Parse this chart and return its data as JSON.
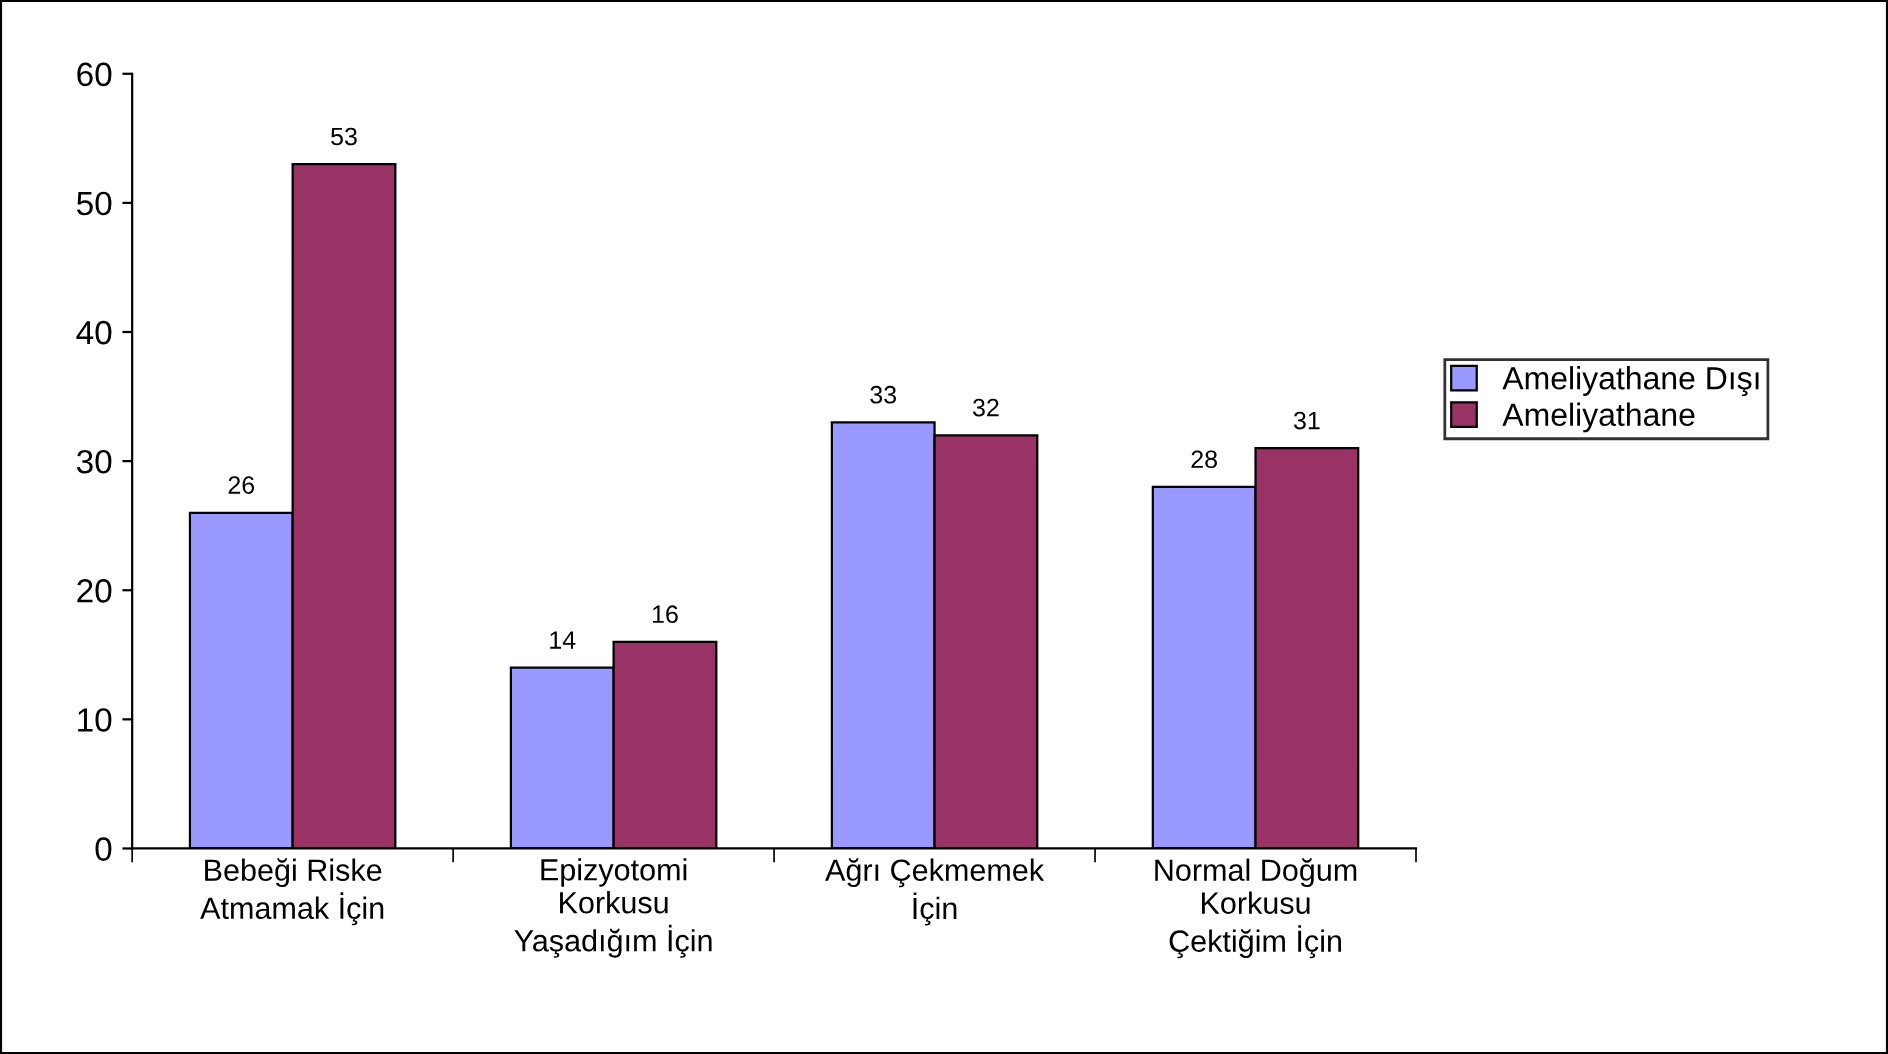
{
  "chart_data": {
    "type": "bar",
    "categories": [
      "Bebeği Riske\nAtmamak İçin",
      "Epizyotomi\nKorkusu\nYaşadığım İçin",
      "Ağrı Çekmemek\nİçin",
      "Normal Doğum\nKorkusu\nÇektiğim İçin"
    ],
    "series": [
      {
        "name": "Ameliyathane Dışı",
        "color": "#9999ff",
        "values": [
          26,
          14,
          33,
          28
        ]
      },
      {
        "name": "Ameliyathane",
        "color": "#993366",
        "values": [
          53,
          16,
          32,
          31
        ]
      }
    ],
    "ylim": [
      0,
      60
    ],
    "yticks": [
      0,
      10,
      20,
      30,
      40,
      50,
      60
    ],
    "grid": false,
    "legend": "right",
    "data_labels": true
  }
}
